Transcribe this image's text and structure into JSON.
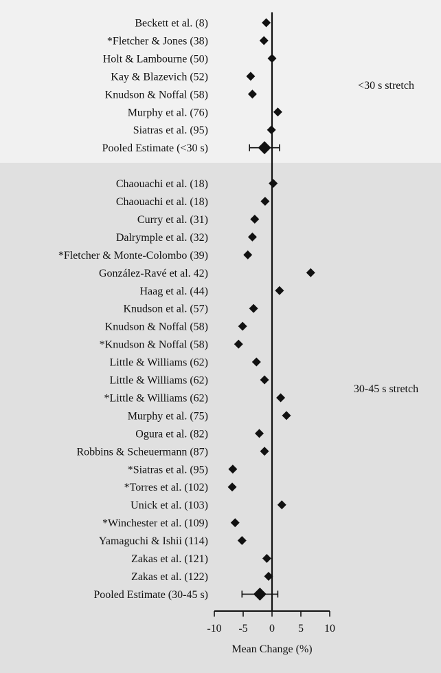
{
  "chart_data": {
    "type": "forest",
    "xlabel": "Mean Change (%)",
    "xlim": [
      -10,
      10
    ],
    "xticks": [
      -10,
      -5,
      0,
      5,
      10
    ],
    "groups": [
      {
        "label": "<30 s stretch",
        "studies": [
          {
            "name": "Beckett et al. (8)",
            "value": -1.0
          },
          {
            "name": "*Fletcher & Jones (38)",
            "value": -1.4
          },
          {
            "name": "Holt & Lambourne (50)",
            "value": 0.0
          },
          {
            "name": "Kay & Blazevich (52)",
            "value": -3.7
          },
          {
            "name": "Knudson & Noffal (58)",
            "value": -3.4
          },
          {
            "name": "Murphy et al. (76)",
            "value": 1.0
          },
          {
            "name": "Siatras et al. (95)",
            "value": -0.1
          }
        ],
        "pooled": {
          "name": "Pooled Estimate (<30 s)",
          "value": -1.3,
          "ci": [
            -3.9,
            1.3
          ]
        }
      },
      {
        "label": "30-45 s stretch",
        "studies": [
          {
            "name": "Chaouachi et al. (18)",
            "value": 0.2
          },
          {
            "name": "Chaouachi et al. (18)",
            "value": -1.2
          },
          {
            "name": "Curry et al. (31)",
            "value": -3.0
          },
          {
            "name": "Dalrymple et al. (32)",
            "value": -3.4
          },
          {
            "name": "*Fletcher & Monte-Colombo (39)",
            "value": -4.2
          },
          {
            "name": "González-Ravé et al. 42)",
            "value": 6.7
          },
          {
            "name": "Haag et al. (44)",
            "value": 1.3
          },
          {
            "name": "Knudson et al. (57)",
            "value": -3.2
          },
          {
            "name": "Knudson & Noffal (58)",
            "value": -5.1
          },
          {
            "name": "*Knudson & Noffal (58)",
            "value": -5.8
          },
          {
            "name": "Little & Williams (62)",
            "value": -2.7
          },
          {
            "name": "Little & Williams (62)",
            "value": -1.3
          },
          {
            "name": "*Little & Williams (62)",
            "value": 1.5
          },
          {
            "name": "Murphy et al. (75)",
            "value": 2.5
          },
          {
            "name": "Ogura et al. (82)",
            "value": -2.2
          },
          {
            "name": "Robbins & Scheuermann (87)",
            "value": -1.3
          },
          {
            "name": "*Siatras et al. (95)",
            "value": -6.8
          },
          {
            "name": "*Torres et al. (102)",
            "value": -6.9
          },
          {
            "name": "Unick et al. (103)",
            "value": 1.7
          },
          {
            "name": "*Winchester et al. (109)",
            "value": -6.4
          },
          {
            "name": "Yamaguchi & Ishii (114)",
            "value": -5.2
          },
          {
            "name": "Zakas et al. (121)",
            "value": -0.9
          },
          {
            "name": "Zakas et al. (122)",
            "value": -0.6
          }
        ],
        "pooled": {
          "name": "Pooled Estimate (30-45 s)",
          "value": -2.1,
          "ci": [
            -5.2,
            1.0
          ]
        }
      }
    ],
    "colors": {
      "group1_background": "#f1f1f1",
      "group2_background": "#e0e0e0",
      "marker": "#111111"
    }
  }
}
